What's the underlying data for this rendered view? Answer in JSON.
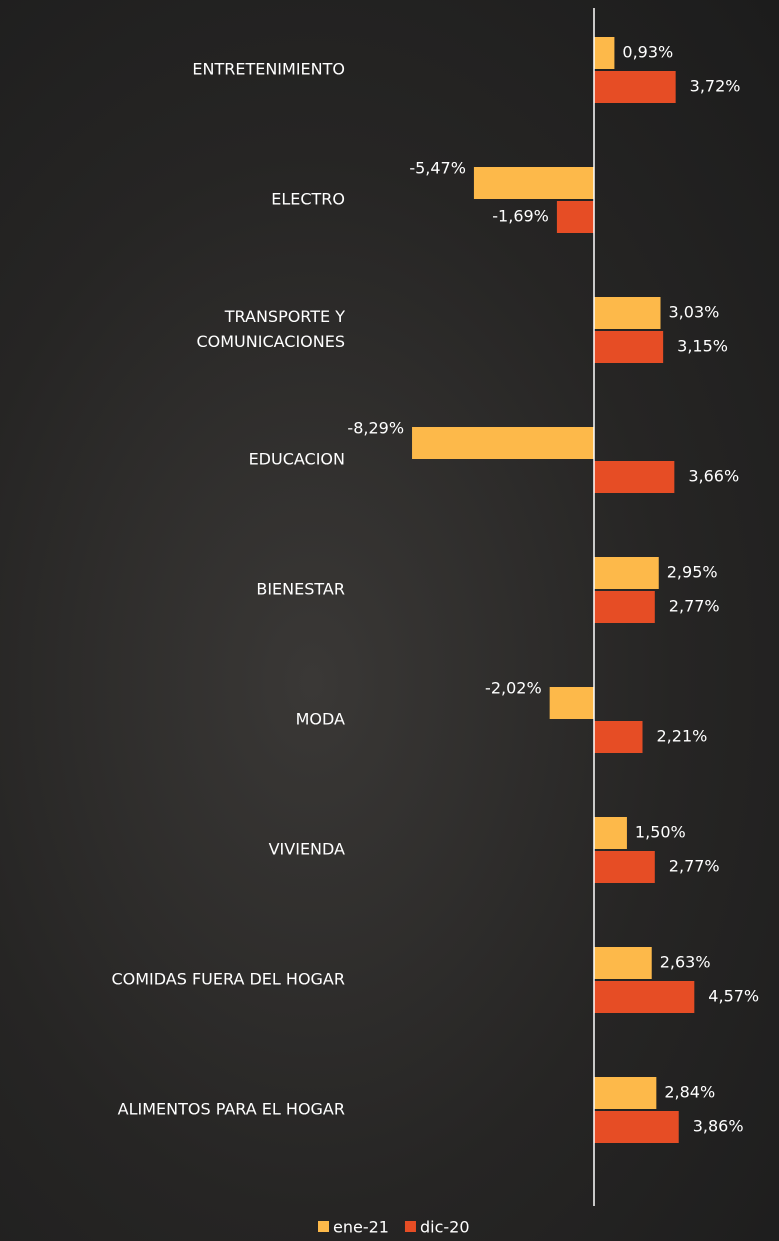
{
  "chart_data": {
    "type": "bar",
    "orientation": "horizontal",
    "categories": [
      "ENTRETENIMIENTO",
      "ELECTRO",
      "TRANSPORTE Y\nCOMUNICACIONES",
      "EDUCACION",
      "BIENESTAR",
      "MODA",
      "VIVIENDA",
      "COMIDAS FUERA DEL HOGAR",
      "ALIMENTOS PARA EL HOGAR"
    ],
    "series": [
      {
        "name": "ene-21",
        "color": "#fdb94a",
        "values": [
          0.93,
          -5.47,
          3.03,
          -8.29,
          2.95,
          -2.02,
          1.5,
          2.63,
          2.84
        ],
        "value_labels": [
          "0,93%",
          "-5,47%",
          "3,03%",
          "-8,29%",
          "2,95%",
          "-2,02%",
          "1,50%",
          "2,63%",
          "2,84%"
        ]
      },
      {
        "name": "dic-20",
        "color": "#e64d25",
        "values": [
          3.72,
          -1.69,
          3.15,
          3.66,
          2.77,
          2.21,
          2.77,
          4.57,
          3.86
        ],
        "value_labels": [
          "3,72%",
          "-1,69%",
          "3,15%",
          "3,66%",
          "2,77%",
          "2,21%",
          "2,77%",
          "4,57%",
          "3,86%"
        ]
      }
    ],
    "legend": "bottom"
  }
}
